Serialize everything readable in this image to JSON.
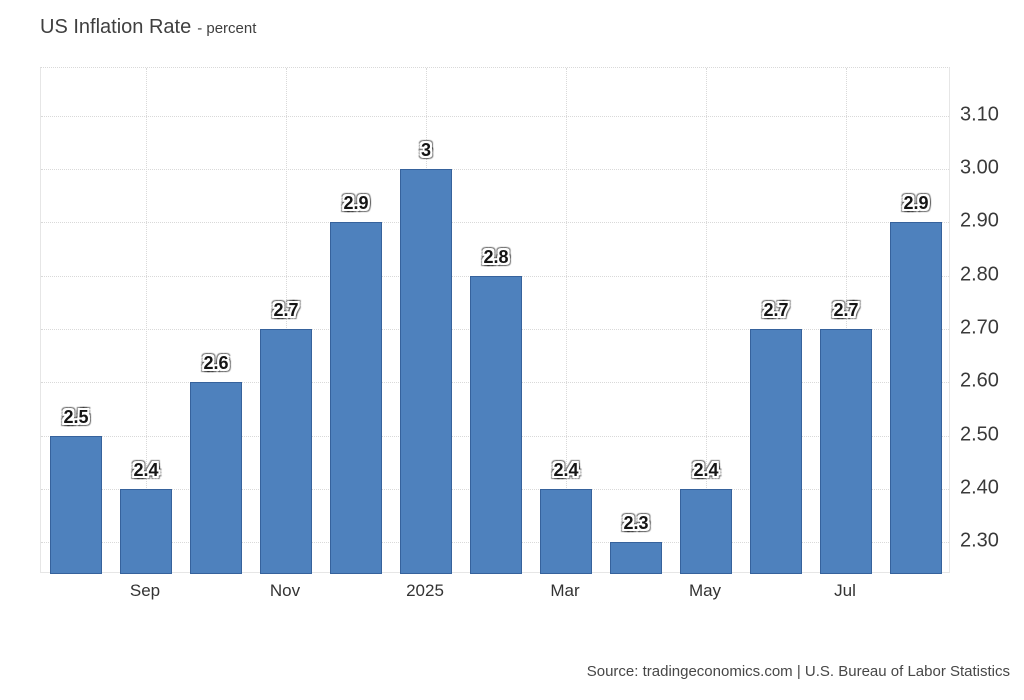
{
  "title": {
    "main": "US Inflation Rate",
    "suffix": "- percent"
  },
  "source": "Source: tradingeconomics.com | U.S. Bureau of Labor Statistics",
  "colors": {
    "bar": "#4e81bd",
    "bar_border": "#36629c",
    "grid": "#d9d9d9",
    "axis_border": "#e6e6e6",
    "text": "#333333"
  },
  "chart_data": {
    "type": "bar",
    "title": "US Inflation Rate",
    "ylabel_unit": "percent",
    "values": [
      2.5,
      2.4,
      2.6,
      2.7,
      2.9,
      3,
      2.8,
      2.4,
      2.3,
      2.4,
      2.7,
      2.7,
      2.9
    ],
    "bar_labels": [
      "2.5",
      "2.4",
      "2.6",
      "2.7",
      "2.9",
      "3",
      "2.8",
      "2.4",
      "2.3",
      "2.4",
      "2.7",
      "2.7",
      "2.9"
    ],
    "x_ticks": [
      {
        "index": 1,
        "label": "Sep"
      },
      {
        "index": 3,
        "label": "Nov"
      },
      {
        "index": 5,
        "label": "2025"
      },
      {
        "index": 7,
        "label": "Mar"
      },
      {
        "index": 9,
        "label": "May"
      },
      {
        "index": 11,
        "label": "Jul"
      }
    ],
    "y_ticks": [
      "2.30",
      "2.40",
      "2.50",
      "2.60",
      "2.70",
      "2.80",
      "2.90",
      "3.00",
      "3.10"
    ],
    "ylim": [
      2.24,
      3.19
    ],
    "grid": "dotted",
    "legend": "none",
    "bar_count": 13
  }
}
